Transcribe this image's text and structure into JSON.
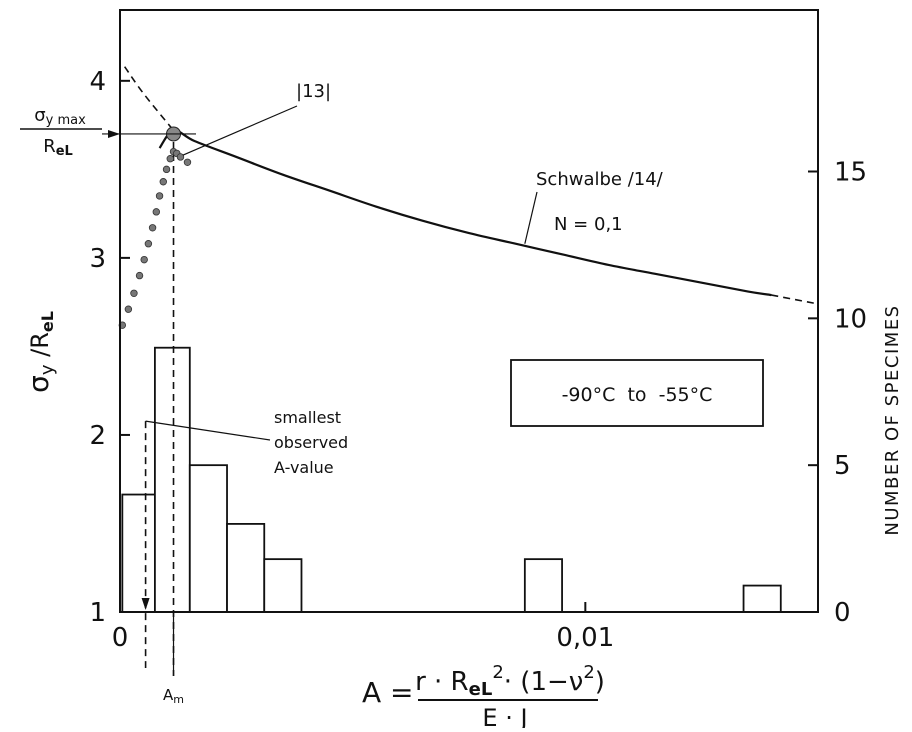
{
  "chart_data": {
    "type": "line",
    "left_axis": {
      "label_main": "σ",
      "label_sub1": "y",
      "label_mid": " /R",
      "label_sub2": "eL",
      "ylim": [
        1,
        4.4
      ],
      "ticks": [
        1,
        2,
        3,
        4
      ],
      "tick_labels": [
        "1",
        "2",
        "3",
        "4"
      ],
      "marker_label_top": "σ",
      "marker_label_top_sub": "y max",
      "marker_label_bottom": "R",
      "marker_label_bottom_sub": "eL",
      "marker_value": 3.7
    },
    "right_axis": {
      "label": "NUMBER OF SPECIMES",
      "ylim": [
        0,
        20.5
      ],
      "ticks": [
        0,
        5,
        10,
        15
      ],
      "tick_labels": [
        "0",
        "5",
        "10",
        "15"
      ]
    },
    "x_axis": {
      "xlim": [
        0,
        0.015
      ],
      "ticks": [
        0,
        0.01
      ],
      "tick_labels": [
        "0",
        "0,01"
      ],
      "label_lhs": "A =",
      "label_num_r": "r · R",
      "label_num_sub": "eL",
      "label_num_sup": "2",
      "label_num_rest": "· (1−ν",
      "label_num_sup2": "2",
      "label_num_end": ")",
      "label_den": "E · J",
      "am_label": "A",
      "am_label_sub": "m",
      "am_value": 0.00115
    },
    "series": [
      {
        "name": "Schwalbe /14/",
        "sublabel": "N = 0,1",
        "style": "solid-with-dashed-extensions",
        "x": [
          0.00085,
          0.00115,
          0.0016,
          0.0025,
          0.0035,
          0.0045,
          0.0055,
          0.0065,
          0.0075,
          0.0085,
          0.0095,
          0.0105,
          0.0115,
          0.0125,
          0.0135,
          0.014
        ],
        "y": [
          3.62,
          3.72,
          3.66,
          3.57,
          3.47,
          3.38,
          3.29,
          3.21,
          3.14,
          3.08,
          3.02,
          2.96,
          2.91,
          2.86,
          2.81,
          2.79
        ],
        "upper_left_dashed_x": [
          0.0001,
          0.0005,
          0.00115
        ],
        "upper_left_dashed_y": [
          4.08,
          3.93,
          3.72
        ],
        "right_dashed_x": [
          0.014,
          0.015
        ],
        "right_dashed_y": [
          2.79,
          2.74
        ]
      },
      {
        "name": "|13|",
        "style": "dots",
        "x": [
          5e-05,
          0.00018,
          0.0003,
          0.00042,
          0.00052,
          0.00061,
          0.0007,
          0.00078,
          0.00085,
          0.00093,
          0.001,
          0.00108,
          0.00115,
          0.00122,
          0.0013,
          0.00145
        ],
        "y": [
          2.62,
          2.71,
          2.8,
          2.9,
          2.99,
          3.08,
          3.17,
          3.26,
          3.35,
          3.43,
          3.5,
          3.56,
          3.6,
          3.59,
          3.57,
          3.54
        ]
      }
    ],
    "histogram": {
      "axis": "right",
      "bins": [
        {
          "x0": 5e-05,
          "x1": 0.00075,
          "count": 4
        },
        {
          "x0": 0.00075,
          "x1": 0.0015,
          "count": 9
        },
        {
          "x0": 0.0015,
          "x1": 0.0023,
          "count": 5
        },
        {
          "x0": 0.0023,
          "x1": 0.0031,
          "count": 3
        },
        {
          "x0": 0.0031,
          "x1": 0.0039,
          "count": 1.8
        },
        {
          "x0": 0.0087,
          "x1": 0.0095,
          "count": 1.8
        },
        {
          "x0": 0.0134,
          "x1": 0.0142,
          "count": 0.9
        }
      ]
    },
    "smallest_A": {
      "label_lines": [
        "smallest",
        "observed",
        "A-value"
      ],
      "value": 0.00055
    },
    "legend_box": "-90°C  to  -55°C",
    "grid": false
  }
}
